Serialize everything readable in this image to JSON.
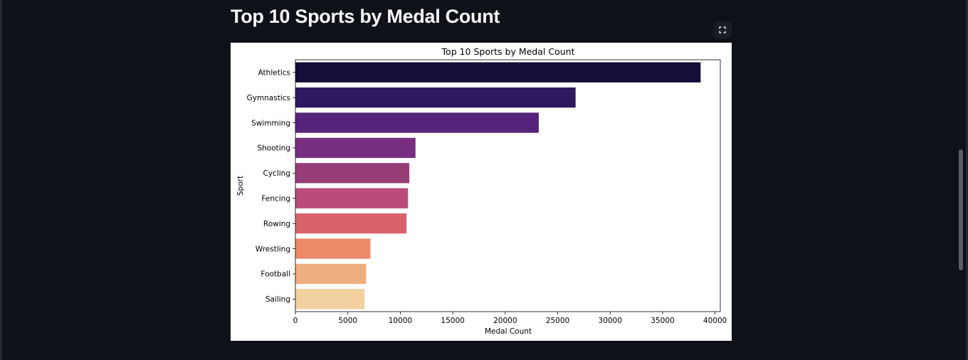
{
  "page": {
    "title": "Top 10 Sports by Medal Count"
  },
  "toolbar": {
    "fullscreen_icon": "fullscreen-icon"
  },
  "colors": {
    "background": "#0e1117",
    "title": "#fafafa",
    "palette": "magma"
  },
  "chart_data": {
    "type": "bar",
    "orientation": "horizontal",
    "title": "Top 10 Sports by Medal Count",
    "xlabel": "Medal Count",
    "ylabel": "Sport",
    "categories": [
      "Athletics",
      "Gymnastics",
      "Swimming",
      "Shooting",
      "Cycling",
      "Fencing",
      "Rowing",
      "Wrestling",
      "Football",
      "Sailing"
    ],
    "values": [
      38624,
      26707,
      23195,
      11448,
      10859,
      10735,
      10595,
      7154,
      6745,
      6586
    ],
    "colors": [
      "#150e38",
      "#2e1860",
      "#56237a",
      "#782e80",
      "#963d77",
      "#b94c7a",
      "#d8636d",
      "#ec8a6a",
      "#eeae7f",
      "#f2d09f"
    ],
    "xlim": [
      0,
      40500
    ],
    "xticks": [
      0,
      5000,
      10000,
      15000,
      20000,
      25000,
      30000,
      35000,
      40000
    ],
    "grid": false,
    "legend": "none"
  }
}
